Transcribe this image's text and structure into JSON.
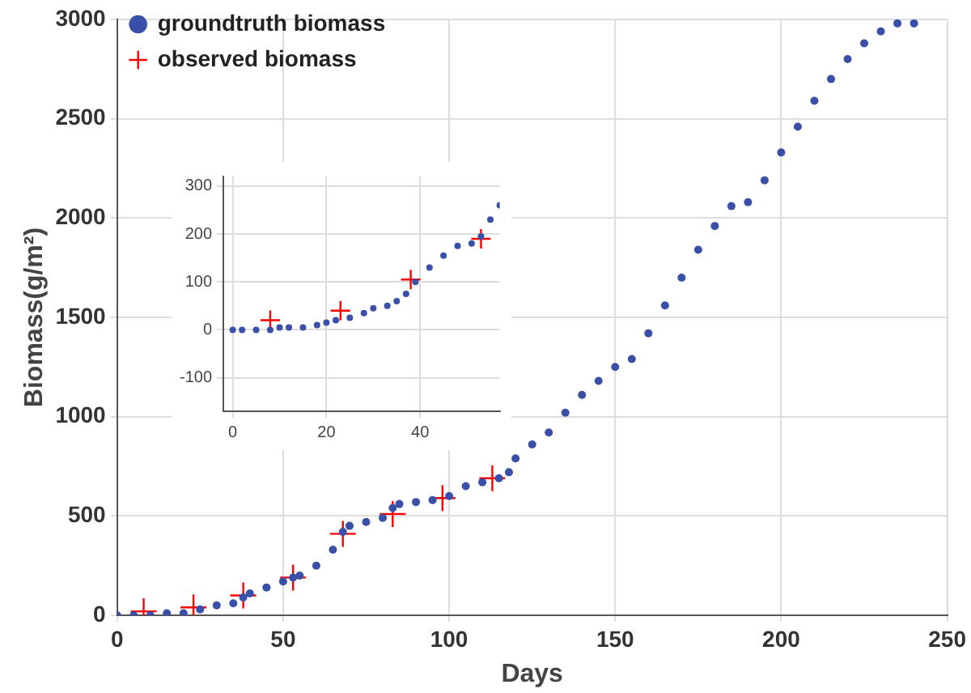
{
  "chart_data": [
    {
      "type": "scatter",
      "xlabel": "Days",
      "ylabel": "Biomass(g/m²)",
      "xlim": [
        0,
        250
      ],
      "ylim": [
        0,
        3000
      ],
      "xticks": [
        0,
        50,
        100,
        150,
        200,
        250
      ],
      "yticks": [
        0,
        500,
        1000,
        1500,
        2000,
        2500,
        3000
      ],
      "grid": true,
      "legend": "top left",
      "series": [
        {
          "name": "groundtruth biomass",
          "color": "#3a50a8",
          "marker": "circle",
          "x": [
            0,
            5,
            10,
            15,
            20,
            25,
            30,
            35,
            38,
            40,
            45,
            50,
            53,
            55,
            60,
            65,
            68,
            70,
            75,
            80,
            83,
            85,
            90,
            95,
            100,
            105,
            110,
            115,
            118,
            120,
            125,
            130,
            135,
            140,
            145,
            150,
            155,
            160,
            165,
            170,
            175,
            180,
            185,
            190,
            195,
            200,
            205,
            210,
            215,
            220,
            225,
            230,
            235,
            240
          ],
          "values": [
            0,
            0,
            0,
            10,
            10,
            30,
            50,
            60,
            90,
            110,
            140,
            170,
            190,
            200,
            250,
            330,
            420,
            450,
            470,
            490,
            540,
            560,
            570,
            580,
            600,
            650,
            670,
            690,
            720,
            790,
            860,
            920,
            1020,
            1110,
            1180,
            1250,
            1290,
            1420,
            1560,
            1700,
            1840,
            1960,
            2060,
            2080,
            2190,
            2330,
            2460,
            2590,
            2700,
            2800,
            2880,
            2940,
            2980,
            2980
          ]
        },
        {
          "name": "observed biomass",
          "color": "#ff0000",
          "marker": "cross",
          "x": [
            8,
            23,
            38,
            53,
            68,
            83,
            98,
            113
          ],
          "values": [
            20,
            40,
            100,
            190,
            410,
            510,
            590,
            690
          ]
        }
      ]
    },
    {
      "type": "scatter",
      "xlim": [
        -2,
        57
      ],
      "ylim": [
        -170,
        320
      ],
      "xticks": [
        0,
        20,
        40
      ],
      "yticks": [
        -100,
        0,
        100,
        200,
        300
      ],
      "grid": true,
      "series": [
        {
          "color": "#3a50a8",
          "marker": "circle",
          "x": [
            0,
            2,
            5,
            8,
            10,
            12,
            15,
            18,
            20,
            22,
            25,
            28,
            30,
            33,
            35,
            37,
            39,
            42,
            45,
            48,
            51,
            53,
            55,
            57
          ],
          "values": [
            0,
            0,
            0,
            0,
            5,
            5,
            5,
            10,
            15,
            20,
            25,
            35,
            45,
            50,
            60,
            75,
            100,
            130,
            155,
            175,
            180,
            195,
            230,
            260
          ]
        },
        {
          "color": "#ff0000",
          "marker": "cross",
          "x": [
            8,
            23,
            38,
            53
          ],
          "values": [
            20,
            40,
            105,
            190
          ]
        }
      ]
    }
  ]
}
